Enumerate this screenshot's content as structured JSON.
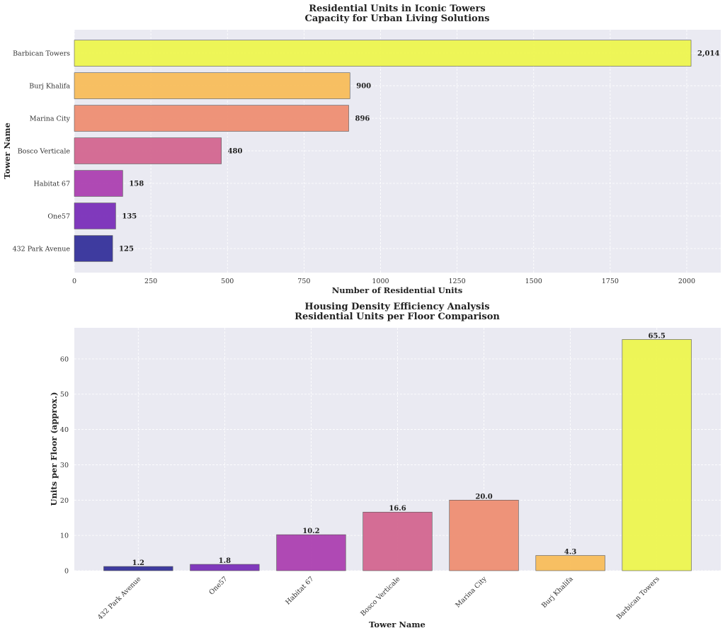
{
  "chart_data": [
    {
      "type": "bar",
      "orientation": "horizontal",
      "title": "Residential Units in Iconic Towers",
      "subtitle": "Capacity for Urban Living Solutions",
      "xlabel": "Number of Residential Units",
      "ylabel": "Tower Name",
      "categories": [
        "432 Park Avenue",
        "One57",
        "Habitat 67",
        "Bosco Verticale",
        "Marina City",
        "Burj Khalifa",
        "Barbican Towers"
      ],
      "values": [
        125,
        135,
        158,
        480,
        896,
        900,
        2014
      ],
      "data_labels": [
        "125",
        "135",
        "158",
        "480",
        "896",
        "900",
        "2,014"
      ],
      "colors": [
        "#35329a",
        "#7a2fb8",
        "#ac40b0",
        "#d3668f",
        "#ee8e72",
        "#f8bd5a",
        "#edf64e"
      ],
      "xlim": [
        0,
        2111
      ],
      "xticks": [
        0,
        250,
        500,
        750,
        1000,
        1250,
        1500,
        1750,
        2000
      ],
      "xtick_labels": [
        "0",
        "250",
        "500",
        "750",
        "1000",
        "1250",
        "1500",
        "1750",
        "2000"
      ],
      "grid": true
    },
    {
      "type": "bar",
      "orientation": "vertical",
      "title": "Housing Density Efficiency Analysis",
      "subtitle": "Residential Units per Floor Comparison",
      "xlabel": "Tower Name",
      "ylabel": "Units per Floor (approx.)",
      "categories": [
        "432 Park Avenue",
        "One57",
        "Habitat 67",
        "Bosco Verticale",
        "Marina City",
        "Burj Khalifa",
        "Barbican Towers"
      ],
      "values": [
        1.2,
        1.8,
        10.2,
        16.6,
        20.0,
        4.3,
        65.5
      ],
      "data_labels": [
        "1.2",
        "1.8",
        "10.2",
        "16.6",
        "20.0",
        "4.3",
        "65.5"
      ],
      "colors": [
        "#35329a",
        "#7a2fb8",
        "#ac40b0",
        "#d3668f",
        "#ee8e72",
        "#f8bd5a",
        "#edf64e"
      ],
      "ylim": [
        0,
        68.8
      ],
      "yticks": [
        0,
        10,
        20,
        30,
        40,
        50,
        60
      ],
      "ytick_labels": [
        "0",
        "10",
        "20",
        "30",
        "40",
        "50",
        "60"
      ],
      "grid": true
    }
  ]
}
